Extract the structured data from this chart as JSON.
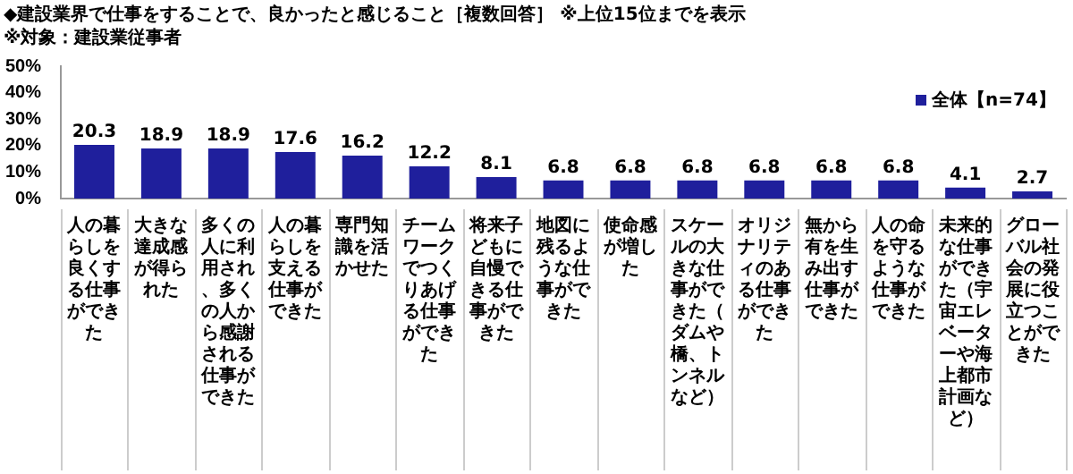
{
  "chart_data": {
    "type": "bar",
    "title": "◆建設業界で仕事をすることで、良かったと感じること［複数回答］ ※上位15位までを表示",
    "subtitle": "※対象：建設業従事者",
    "categories": [
      "人の暮らしを良くする仕事ができた",
      "大きな達成感が得られた",
      "多くの人に利用され、多くの人から感謝される仕事ができた",
      "人の暮らしを支える仕事ができた",
      "専門知識を活かせた",
      "チームワークでつくりあげる仕事ができた",
      "将来子どもに自慢できる仕事ができた",
      "地図に残るような仕事ができた",
      "使命感が増した",
      "スケールの大きな仕事ができた（ダムや橋、トンネルなど）",
      "オリジナリティのある仕事ができた",
      "無から有を生み出す仕事ができた",
      "人の命を守るような仕事ができた",
      "未来的な仕事ができた（宇宙エレベーターや海上都市計画など）",
      "グローバル社会の発展に役立つことができた"
    ],
    "series": [
      {
        "name": "全体【n=74】",
        "color": "#1f1f9c",
        "values": [
          20.3,
          18.9,
          18.9,
          17.6,
          16.2,
          12.2,
          8.1,
          6.8,
          6.8,
          6.8,
          6.8,
          6.8,
          6.8,
          4.1,
          2.7
        ]
      }
    ],
    "ylim": [
      0,
      50
    ],
    "yticks": [
      {
        "value": 0,
        "label": "0%"
      },
      {
        "value": 10,
        "label": "10%"
      },
      {
        "value": 20,
        "label": "20%"
      },
      {
        "value": 30,
        "label": "30%"
      },
      {
        "value": 40,
        "label": "40%"
      },
      {
        "value": 50,
        "label": "50%"
      }
    ],
    "data_labels": true,
    "legend": "top right",
    "grid": false
  }
}
